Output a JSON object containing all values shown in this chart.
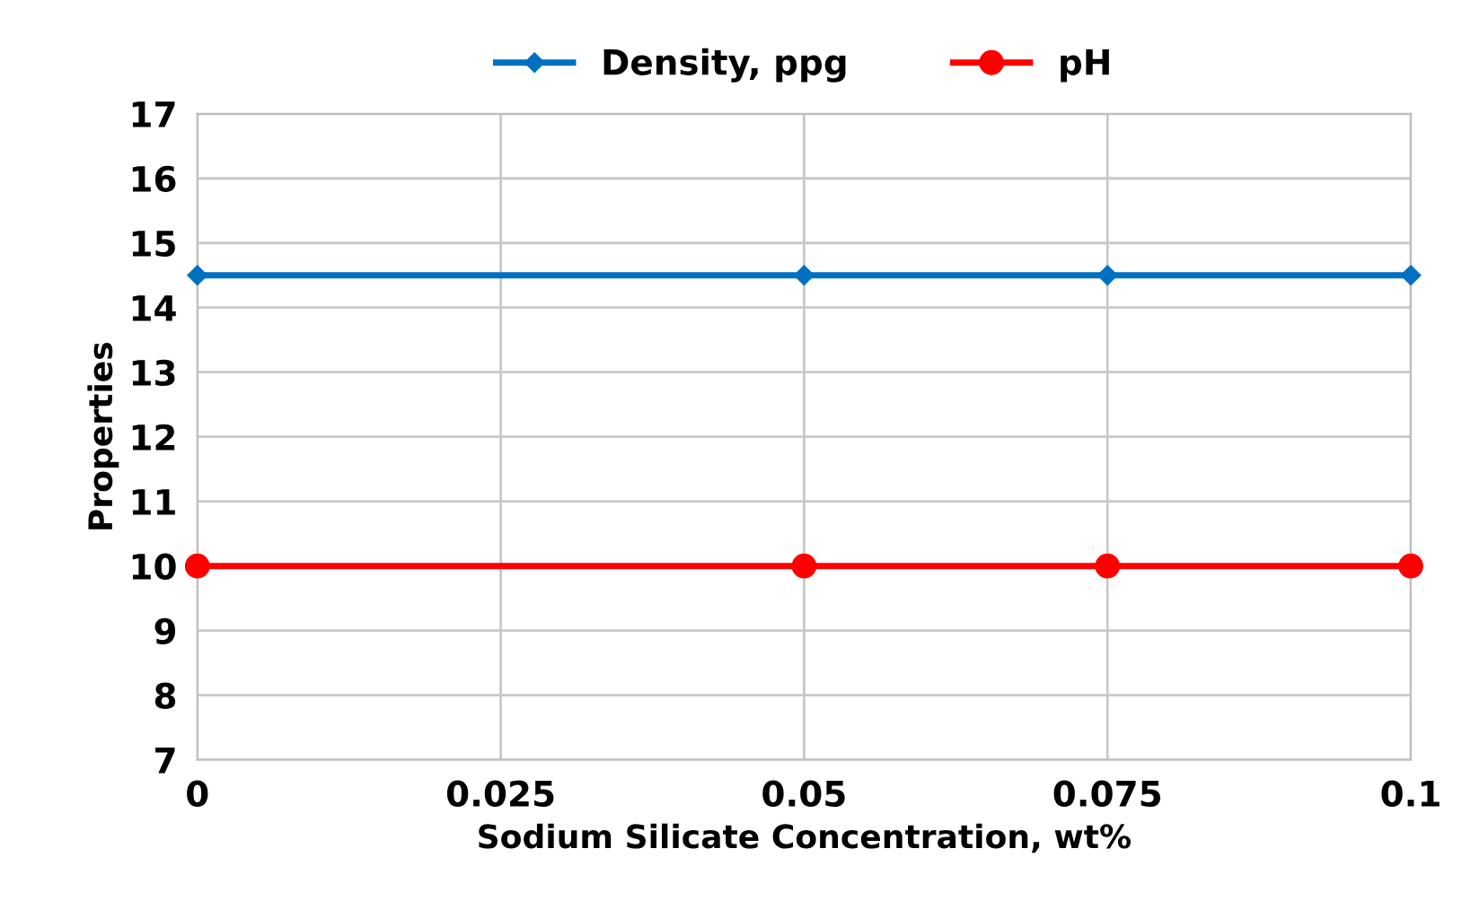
{
  "chart_data": {
    "type": "line",
    "xlabel": "Sodium Silicate Concentration, wt%",
    "ylabel": "Properties",
    "x": [
      0,
      0.05,
      0.075,
      0.1
    ],
    "series": [
      {
        "name": "Density, ppg",
        "color": "#0070c0",
        "marker": "diamond",
        "values": [
          14.5,
          14.5,
          14.5,
          14.5
        ]
      },
      {
        "name": "pH",
        "color": "#ff0000",
        "marker": "circle",
        "values": [
          10,
          10,
          10,
          10
        ]
      }
    ],
    "xlim": [
      0,
      0.1
    ],
    "xticks": [
      0,
      0.025,
      0.05,
      0.075,
      0.1
    ],
    "ylim": [
      7,
      17
    ],
    "yticks": [
      7,
      8,
      9,
      10,
      11,
      12,
      13,
      14,
      15,
      16,
      17
    ],
    "grid": true,
    "legend": "top",
    "line_style": "solid"
  }
}
